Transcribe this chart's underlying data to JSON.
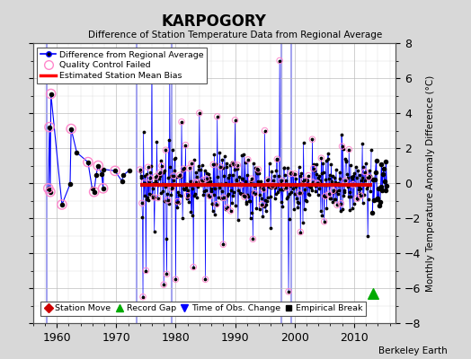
{
  "title": "KARPOGORY",
  "subtitle": "Difference of Station Temperature Data from Regional Average",
  "ylabel": "Monthly Temperature Anomaly Difference (°C)",
  "xlabel_ticks": [
    1960,
    1970,
    1980,
    1990,
    2000,
    2010
  ],
  "ylim": [
    -8,
    8
  ],
  "xlim": [
    1956,
    2017
  ],
  "background_color": "#d8d8d8",
  "plot_bg_color": "#ffffff",
  "grid_color": "#bbbbbb",
  "bias_line_color": "#dd0000",
  "bias_line_value": -0.1,
  "bias_x_start": 1974.0,
  "bias_x_end": 2013.0,
  "vertical_lines_x": [
    1958.3,
    1973.5,
    1979.3,
    1997.8,
    1999.5
  ],
  "vertical_line_color": "#9999ee",
  "green_triangle_x": 2013.2,
  "green_triangle_y": -6.3,
  "watermark": "Berkeley Earth",
  "seed": 17
}
